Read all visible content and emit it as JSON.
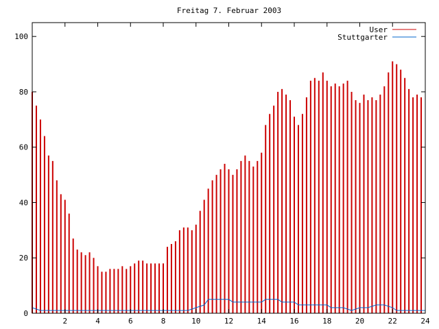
{
  "chart_data": {
    "type": "bar",
    "title": "Freitag 7. Februar 2003",
    "xlabel": "",
    "ylabel": "",
    "xlim": [
      0,
      24
    ],
    "ylim": [
      0,
      105
    ],
    "x_ticks": [
      2,
      4,
      6,
      8,
      10,
      12,
      14,
      16,
      18,
      20,
      22,
      24
    ],
    "y_ticks": [
      0,
      20,
      40,
      60,
      80,
      100
    ],
    "grid": false,
    "legend_position": "top-right",
    "series": [
      {
        "name": "User",
        "color": "#cc0000",
        "style": "impulses",
        "points": [
          [
            0.0,
            80
          ],
          [
            0.25,
            75
          ],
          [
            0.5,
            70
          ],
          [
            0.75,
            64
          ],
          [
            1.0,
            57
          ],
          [
            1.25,
            55
          ],
          [
            1.5,
            48
          ],
          [
            1.75,
            43
          ],
          [
            2.0,
            41
          ],
          [
            2.25,
            36
          ],
          [
            2.5,
            27
          ],
          [
            2.75,
            23
          ],
          [
            3.0,
            22
          ],
          [
            3.25,
            21
          ],
          [
            3.5,
            22
          ],
          [
            3.75,
            20
          ],
          [
            4.0,
            17
          ],
          [
            4.25,
            15
          ],
          [
            4.5,
            15
          ],
          [
            4.75,
            16
          ],
          [
            5.0,
            16
          ],
          [
            5.25,
            16
          ],
          [
            5.5,
            17
          ],
          [
            5.75,
            16
          ],
          [
            6.0,
            17
          ],
          [
            6.25,
            18
          ],
          [
            6.5,
            19
          ],
          [
            6.75,
            19
          ],
          [
            7.0,
            18
          ],
          [
            7.25,
            18
          ],
          [
            7.5,
            18
          ],
          [
            7.75,
            18
          ],
          [
            8.0,
            18
          ],
          [
            8.25,
            24
          ],
          [
            8.5,
            25
          ],
          [
            8.75,
            26
          ],
          [
            9.0,
            30
          ],
          [
            9.25,
            31
          ],
          [
            9.5,
            31
          ],
          [
            9.75,
            30
          ],
          [
            10.0,
            32
          ],
          [
            10.25,
            37
          ],
          [
            10.5,
            41
          ],
          [
            10.75,
            45
          ],
          [
            11.0,
            48
          ],
          [
            11.25,
            50
          ],
          [
            11.5,
            52
          ],
          [
            11.75,
            54
          ],
          [
            12.0,
            52
          ],
          [
            12.25,
            50
          ],
          [
            12.5,
            52
          ],
          [
            12.75,
            55
          ],
          [
            13.0,
            57
          ],
          [
            13.25,
            55
          ],
          [
            13.5,
            53
          ],
          [
            13.75,
            55
          ],
          [
            14.0,
            58
          ],
          [
            14.25,
            68
          ],
          [
            14.5,
            72
          ],
          [
            14.75,
            75
          ],
          [
            15.0,
            80
          ],
          [
            15.25,
            81
          ],
          [
            15.5,
            79
          ],
          [
            15.75,
            77
          ],
          [
            16.0,
            71
          ],
          [
            16.25,
            68
          ],
          [
            16.5,
            72
          ],
          [
            16.75,
            78
          ],
          [
            17.0,
            84
          ],
          [
            17.25,
            85
          ],
          [
            17.5,
            84
          ],
          [
            17.75,
            87
          ],
          [
            18.0,
            84
          ],
          [
            18.25,
            82
          ],
          [
            18.5,
            83
          ],
          [
            18.75,
            82
          ],
          [
            19.0,
            83
          ],
          [
            19.25,
            84
          ],
          [
            19.5,
            80
          ],
          [
            19.75,
            77
          ],
          [
            20.0,
            76
          ],
          [
            20.25,
            79
          ],
          [
            20.5,
            77
          ],
          [
            20.75,
            78
          ],
          [
            21.0,
            77
          ],
          [
            21.25,
            79
          ],
          [
            21.5,
            82
          ],
          [
            21.75,
            87
          ],
          [
            22.0,
            91
          ],
          [
            22.25,
            90
          ],
          [
            22.5,
            88
          ],
          [
            22.75,
            85
          ],
          [
            23.0,
            81
          ],
          [
            23.25,
            78
          ],
          [
            23.5,
            79
          ],
          [
            23.75,
            78
          ]
        ]
      },
      {
        "name": "Stuttgarter",
        "color": "#0066cc",
        "style": "lines",
        "points": [
          [
            0.0,
            2
          ],
          [
            0.5,
            1
          ],
          [
            1.0,
            1
          ],
          [
            2.0,
            1
          ],
          [
            3.0,
            1
          ],
          [
            4.0,
            1
          ],
          [
            5.0,
            1
          ],
          [
            6.0,
            1
          ],
          [
            7.0,
            1
          ],
          [
            8.0,
            1
          ],
          [
            9.0,
            1
          ],
          [
            9.5,
            1
          ],
          [
            10.0,
            2
          ],
          [
            10.5,
            3
          ],
          [
            10.75,
            5
          ],
          [
            11.0,
            5
          ],
          [
            11.5,
            5
          ],
          [
            12.0,
            5
          ],
          [
            12.25,
            4
          ],
          [
            13.0,
            4
          ],
          [
            14.0,
            4
          ],
          [
            14.25,
            5
          ],
          [
            15.0,
            5
          ],
          [
            15.25,
            4
          ],
          [
            16.0,
            4
          ],
          [
            16.25,
            3
          ],
          [
            17.0,
            3
          ],
          [
            18.0,
            3
          ],
          [
            18.25,
            2
          ],
          [
            19.0,
            2
          ],
          [
            19.5,
            1
          ],
          [
            20.0,
            2
          ],
          [
            20.5,
            2
          ],
          [
            21.0,
            3
          ],
          [
            21.5,
            3
          ],
          [
            22.0,
            2
          ],
          [
            22.25,
            1
          ],
          [
            23.0,
            1
          ],
          [
            24.0,
            1
          ]
        ]
      }
    ]
  }
}
